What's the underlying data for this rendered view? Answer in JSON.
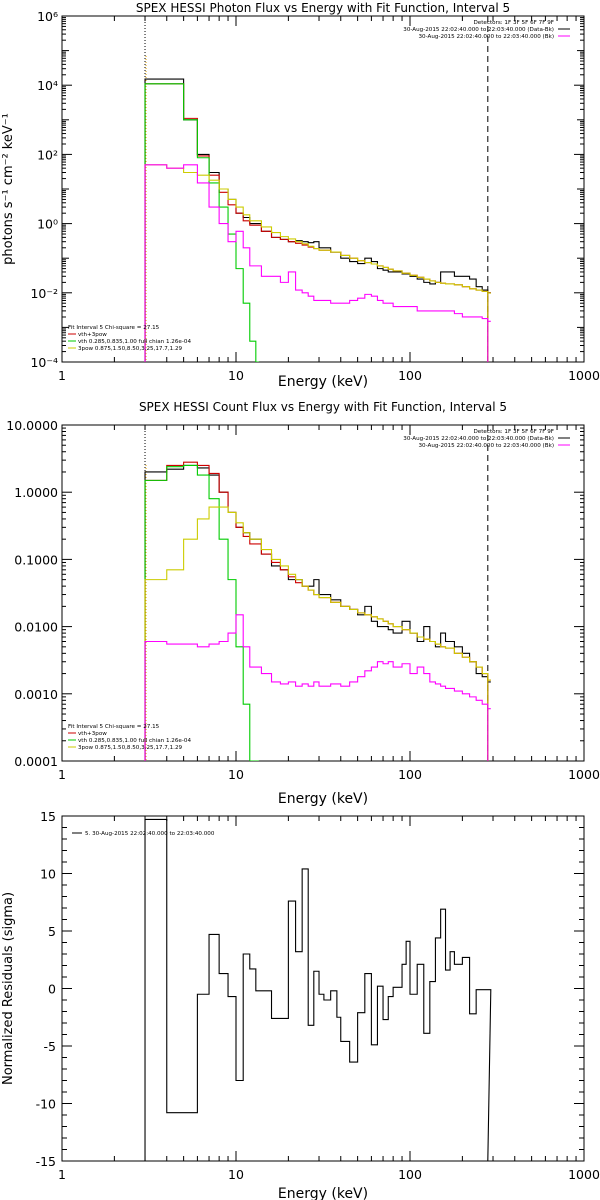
{
  "chart_data": [
    {
      "type": "line",
      "title": "SPEX HESSI Photon Flux vs Energy with Fit Function, Interval 5",
      "xlabel": "Energy (keV)",
      "ylabel": "photons s⁻¹ cm⁻² keV⁻¹",
      "xscale": "log",
      "yscale": "log",
      "xlim": [
        1,
        1000
      ],
      "ylim": [
        0.0001,
        1000000
      ],
      "xticks": [
        "1",
        "10",
        "100",
        "1000"
      ],
      "yticks": [
        "10⁻⁴",
        "10⁻²",
        "10⁰",
        "10²",
        "10⁴",
        "10⁶"
      ],
      "header_lines": [
        "Detectors: 1F 3F 5F 6F 7F 9F",
        "30-Aug-2015 22:02:40.000 to 22:03:40.000 (Data-Bk)",
        "30-Aug-2015 22:02:40.000 to 22:03:40.000 (Bk)"
      ],
      "fit_header": "Fit Interval 5   Chi-square = 27.15",
      "legend_lines": [
        "vth+3pow",
        "vth 0.285,0.835,1.00  full chian 1.26e-04",
        "3pow 0.875,1.50,8.50,3.25,17.7,1.29"
      ],
      "legend_colors": [
        "#cc0000",
        "#00cc00",
        "#cccc00"
      ],
      "header_colors": [
        "#000000",
        "#000000",
        "#ff00ff"
      ],
      "marker_lines": [
        3,
        280
      ],
      "grid": false,
      "series": [
        {
          "color": "#000000",
          "kind": "step",
          "x": [
            3,
            4,
            5,
            6,
            7,
            8,
            9,
            10,
            11,
            12,
            14,
            16,
            18,
            20,
            22,
            24,
            26,
            28,
            30,
            35,
            40,
            45,
            50,
            55,
            60,
            65,
            70,
            75,
            80,
            90,
            100,
            110,
            120,
            130,
            140,
            150,
            160,
            180,
            200,
            220,
            240,
            260,
            280
          ],
          "y": [
            15000,
            15000,
            1000,
            100,
            30,
            10,
            5,
            2,
            1.5,
            1,
            0.6,
            0.4,
            0.35,
            0.3,
            0.32,
            0.3,
            0.28,
            0.3,
            0.2,
            0.15,
            0.1,
            0.08,
            0.07,
            0.1,
            0.08,
            0.05,
            0.045,
            0.04,
            0.04,
            0.035,
            0.03,
            0.025,
            0.02,
            0.018,
            0.02,
            0.04,
            0.04,
            0.03,
            0.03,
            0.025,
            0.015,
            0.012,
            0.01
          ]
        },
        {
          "color": "#cc0000",
          "kind": "step",
          "x": [
            3,
            4,
            5,
            6,
            7,
            8,
            9,
            10,
            11,
            12,
            14,
            16,
            18,
            20,
            22,
            24,
            26,
            28,
            30,
            35,
            40,
            45,
            50,
            55,
            60,
            65,
            70,
            75,
            80,
            90,
            100,
            110,
            120,
            130,
            140,
            150,
            160,
            180,
            200,
            220,
            240,
            260,
            280
          ],
          "y": [
            11000,
            11000,
            1100,
            90,
            25,
            8,
            3.5,
            2,
            1.2,
            0.9,
            0.6,
            0.4,
            0.35,
            0.3,
            0.27,
            0.24,
            0.21,
            0.19,
            0.17,
            0.15,
            0.12,
            0.1,
            0.085,
            0.075,
            0.068,
            0.06,
            0.054,
            0.048,
            0.043,
            0.037,
            0.032,
            0.028,
            0.025,
            0.022,
            0.02,
            0.019,
            0.018,
            0.017,
            0.015,
            0.013,
            0.012,
            0.011,
            0.01
          ]
        },
        {
          "color": "#00cc00",
          "kind": "step",
          "x": [
            3,
            4,
            5,
            6,
            7,
            8,
            9,
            10,
            11,
            12,
            13
          ],
          "y": [
            11000,
            11000,
            1000,
            80,
            15,
            3,
            0.5,
            0.05,
            0.005,
            0.0004,
            0.0001
          ]
        },
        {
          "color": "#cccc00",
          "kind": "step",
          "x": [
            3,
            4,
            5,
            6,
            7,
            8,
            9,
            10,
            11,
            12,
            14,
            16,
            18,
            20,
            22,
            24,
            26,
            28,
            30,
            35,
            40,
            45,
            50,
            55,
            60,
            65,
            70,
            75,
            80,
            90,
            100,
            110,
            120,
            130,
            140,
            150,
            160,
            180,
            200,
            220,
            240,
            260,
            280
          ],
          "y": [
            50,
            40,
            30,
            25,
            18,
            10,
            5,
            3,
            1.8,
            1.2,
            0.8,
            0.55,
            0.42,
            0.36,
            0.3,
            0.26,
            0.22,
            0.19,
            0.17,
            0.15,
            0.12,
            0.1,
            0.085,
            0.075,
            0.068,
            0.06,
            0.054,
            0.048,
            0.043,
            0.037,
            0.032,
            0.028,
            0.025,
            0.022,
            0.02,
            0.019,
            0.018,
            0.017,
            0.015,
            0.013,
            0.012,
            0.011,
            0.0098
          ]
        },
        {
          "color": "#ff00ff",
          "kind": "step",
          "x": [
            3,
            4,
            5,
            6,
            7,
            8,
            9,
            10,
            11,
            12,
            14,
            16,
            18,
            20,
            22,
            24,
            26,
            28,
            30,
            35,
            40,
            45,
            50,
            55,
            60,
            65,
            70,
            75,
            80,
            90,
            100,
            110,
            120,
            130,
            140,
            150,
            160,
            180,
            200,
            220,
            240,
            260,
            280
          ],
          "y": [
            50,
            40,
            50,
            15,
            3,
            1,
            0.3,
            0.6,
            0.2,
            0.06,
            0.03,
            0.03,
            0.02,
            0.04,
            0.012,
            0.01,
            0.008,
            0.006,
            0.006,
            0.005,
            0.005,
            0.006,
            0.007,
            0.009,
            0.008,
            0.006,
            0.005,
            0.005,
            0.004,
            0.004,
            0.004,
            0.003,
            0.003,
            0.003,
            0.003,
            0.003,
            0.003,
            0.0025,
            0.002,
            0.002,
            0.002,
            0.0018,
            0.0015
          ]
        }
      ]
    },
    {
      "type": "line",
      "title": "SPEX HESSI Count Flux vs Energy with Fit Function, Interval 5",
      "xlabel": "Energy (keV)",
      "ylabel": "",
      "xscale": "log",
      "yscale": "log",
      "xlim": [
        1,
        1000
      ],
      "ylim": [
        0.0001,
        10
      ],
      "xticks": [
        "1",
        "10",
        "100",
        "1000"
      ],
      "yticks": [
        "0.0001",
        "0.0010",
        "0.0100",
        "0.1000",
        "1.0000",
        "10.0000"
      ],
      "header_lines": [
        "Detectors: 1F 3F 5F 6F 7F 9F",
        "30-Aug-2015 22:02:40.000 to 22:03:40.000 (Data-Bk)",
        "30-Aug-2015 22:02:40.000 to 22:03:40.000 (Bk)"
      ],
      "fit_header": "Fit Interval 5   Chi-square = 27.15",
      "legend_lines": [
        "vth+3pow",
        "vth 0.285,0.835,1.00  full chian 1.26e-04",
        "3pow 0.875,1.50,8.50,3.25,17.7,1.29"
      ],
      "legend_colors": [
        "#cc0000",
        "#00cc00",
        "#cccc00"
      ],
      "header_colors": [
        "#000000",
        "#000000",
        "#ff00ff"
      ],
      "marker_lines": [
        3,
        280
      ],
      "grid": false,
      "series": [
        {
          "color": "#000000",
          "kind": "step",
          "x": [
            3,
            4,
            5,
            6,
            7,
            8,
            9,
            10,
            11,
            12,
            14,
            16,
            18,
            20,
            22,
            24,
            26,
            28,
            30,
            35,
            40,
            45,
            50,
            55,
            60,
            65,
            70,
            75,
            80,
            90,
            100,
            110,
            120,
            130,
            140,
            150,
            160,
            180,
            200,
            220,
            240,
            260,
            280
          ],
          "y": [
            2,
            2.2,
            2.5,
            2.3,
            1.8,
            1,
            0.5,
            0.3,
            0.25,
            0.2,
            0.12,
            0.08,
            0.07,
            0.05,
            0.05,
            0.04,
            0.04,
            0.05,
            0.03,
            0.025,
            0.02,
            0.018,
            0.015,
            0.02,
            0.012,
            0.01,
            0.01,
            0.009,
            0.008,
            0.012,
            0.008,
            0.006,
            0.01,
            0.006,
            0.005,
            0.008,
            0.006,
            0.005,
            0.004,
            0.003,
            0.002,
            0.0018,
            0.0015
          ]
        },
        {
          "color": "#cc0000",
          "kind": "step",
          "x": [
            3,
            4,
            5,
            6,
            7,
            8,
            9,
            10,
            11,
            12,
            14,
            16,
            18,
            20,
            22,
            24,
            26,
            28,
            30,
            35,
            40,
            45,
            50,
            55,
            60,
            65,
            70,
            75,
            80,
            90,
            100,
            110,
            120,
            130,
            140,
            150,
            160,
            180,
            200,
            220,
            240,
            260,
            280
          ],
          "y": [
            1.5,
            2.5,
            2.8,
            2.5,
            1.9,
            1,
            0.5,
            0.3,
            0.22,
            0.17,
            0.12,
            0.09,
            0.07,
            0.055,
            0.045,
            0.04,
            0.035,
            0.03,
            0.027,
            0.023,
            0.02,
            0.018,
            0.016,
            0.015,
            0.014,
            0.013,
            0.012,
            0.011,
            0.01,
            0.009,
            0.008,
            0.007,
            0.0065,
            0.006,
            0.0055,
            0.005,
            0.0048,
            0.004,
            0.0035,
            0.003,
            0.0025,
            0.002,
            0.0016
          ]
        },
        {
          "color": "#00cc00",
          "kind": "step",
          "x": [
            3,
            4,
            5,
            6,
            7,
            8,
            9,
            10,
            11,
            12,
            13
          ],
          "y": [
            1.5,
            2.4,
            2.5,
            1.8,
            0.8,
            0.2,
            0.05,
            0.005,
            0.0007,
            0.0001,
            0.0001
          ]
        },
        {
          "color": "#cccc00",
          "kind": "step",
          "x": [
            3,
            4,
            5,
            6,
            7,
            8,
            9,
            10,
            11,
            12,
            14,
            16,
            18,
            20,
            22,
            24,
            26,
            28,
            30,
            35,
            40,
            45,
            50,
            55,
            60,
            65,
            70,
            75,
            80,
            90,
            100,
            110,
            120,
            130,
            140,
            150,
            160,
            180,
            200,
            220,
            240,
            260,
            280
          ],
          "y": [
            0.05,
            0.07,
            0.2,
            0.4,
            0.6,
            0.6,
            0.5,
            0.35,
            0.25,
            0.2,
            0.14,
            0.1,
            0.08,
            0.06,
            0.05,
            0.04,
            0.035,
            0.03,
            0.027,
            0.023,
            0.02,
            0.018,
            0.016,
            0.015,
            0.014,
            0.013,
            0.012,
            0.011,
            0.01,
            0.009,
            0.008,
            0.007,
            0.0065,
            0.006,
            0.0055,
            0.005,
            0.0048,
            0.004,
            0.0035,
            0.003,
            0.0025,
            0.002,
            0.0016
          ]
        },
        {
          "color": "#ff00ff",
          "kind": "step",
          "x": [
            3,
            4,
            5,
            6,
            7,
            8,
            9,
            10,
            11,
            12,
            14,
            16,
            18,
            20,
            22,
            24,
            26,
            28,
            30,
            35,
            40,
            45,
            50,
            55,
            60,
            65,
            70,
            75,
            80,
            90,
            100,
            110,
            120,
            130,
            140,
            150,
            160,
            180,
            200,
            220,
            240,
            260,
            280
          ],
          "y": [
            0.006,
            0.0055,
            0.0055,
            0.005,
            0.0055,
            0.006,
            0.008,
            0.015,
            0.005,
            0.0025,
            0.002,
            0.0015,
            0.0014,
            0.0015,
            0.0013,
            0.0014,
            0.0013,
            0.0015,
            0.0013,
            0.0014,
            0.0013,
            0.0015,
            0.0018,
            0.0022,
            0.0025,
            0.003,
            0.0028,
            0.003,
            0.0025,
            0.0028,
            0.002,
            0.0025,
            0.002,
            0.0015,
            0.0014,
            0.0013,
            0.0012,
            0.0011,
            0.001,
            0.0009,
            0.0008,
            0.0007,
            0.0006
          ]
        }
      ]
    },
    {
      "type": "line",
      "title": "",
      "xlabel": "Energy (keV)",
      "ylabel": "Normalized Residuals (sigma)",
      "xscale": "log",
      "yscale": "linear",
      "xlim": [
        1,
        1000
      ],
      "ylim": [
        -15,
        15
      ],
      "xticks": [
        "1",
        "10",
        "100",
        "1000"
      ],
      "yticks": [
        "-15",
        "-10",
        "-5",
        "0",
        "5",
        "10",
        "15"
      ],
      "legend_lines": [
        "5. 30-Aug-2015 22:02:40.000 to 22:03:40.000"
      ],
      "grid": false,
      "series": [
        {
          "color": "#000000",
          "kind": "step",
          "x": [
            3,
            4,
            5,
            6,
            7,
            8,
            9,
            10,
            11,
            12,
            13,
            14,
            16,
            18,
            20,
            22,
            24,
            26,
            28,
            30,
            32,
            35,
            38,
            40,
            45,
            50,
            55,
            60,
            65,
            70,
            75,
            80,
            90,
            95,
            100,
            110,
            120,
            130,
            140,
            150,
            160,
            170,
            180,
            200,
            220,
            240,
            260,
            280
          ],
          "y": [
            14.7,
            -10.8,
            -10.8,
            -0.5,
            4.7,
            1.3,
            -0.7,
            -8,
            3,
            1.7,
            -0.2,
            -0.2,
            -2.6,
            -2.6,
            7.6,
            3.2,
            10.4,
            -3.2,
            1.5,
            -0.5,
            -1,
            -0.2,
            -2.5,
            -4.6,
            -6.4,
            -2.1,
            1.3,
            -4.9,
            0.2,
            -2.7,
            -0.7,
            0.1,
            2.1,
            4.1,
            -0.5,
            2.1,
            -3.9,
            0.6,
            4.4,
            6.9,
            1.6,
            3.2,
            2.1,
            2.7,
            -2.2,
            -0.1,
            -0.1,
            -0.1
          ]
        }
      ]
    }
  ]
}
